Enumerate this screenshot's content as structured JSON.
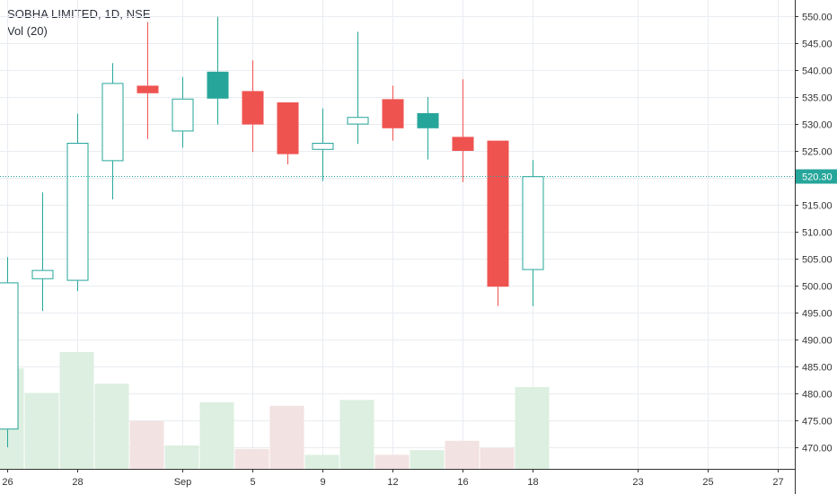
{
  "legend": {
    "title": "SOBHA LIMITED, 1D, NSE",
    "indicator": "Vol (20)"
  },
  "colors": {
    "up": "#26a69a",
    "down": "#ef5350",
    "vol_up": "#dcefe0",
    "vol_down": "#f3e2e2",
    "grid": "#e9ecf1",
    "axis": "#333333",
    "last_price_line": "#26a69a"
  },
  "chart_data": {
    "type": "candlestick",
    "symbol": "SOBHA LIMITED",
    "interval": "1D",
    "exchange": "NSE",
    "ylim": [
      466,
      553
    ],
    "yticks": [
      470,
      475,
      480,
      485,
      490,
      495,
      500,
      505,
      510,
      515,
      520,
      525,
      530,
      535,
      540,
      545,
      550
    ],
    "xticks": [
      {
        "label": "26",
        "index": 0
      },
      {
        "label": "28",
        "index": 2
      },
      {
        "label": "Sep",
        "index": 5
      },
      {
        "label": "5",
        "index": 7
      },
      {
        "label": "9",
        "index": 9
      },
      {
        "label": "12",
        "index": 11
      },
      {
        "label": "16",
        "index": 13
      },
      {
        "label": "18",
        "index": 15
      },
      {
        "label": "23",
        "index": 18
      },
      {
        "label": "25",
        "index": 20
      },
      {
        "label": "27",
        "index": 22
      }
    ],
    "last_price": 520.3,
    "last_price_label": "520.30",
    "candles": [
      {
        "open": 473.3,
        "high": 505.3,
        "low": 470.0,
        "close": 500.6,
        "volume": 0.86,
        "dir": "up"
      },
      {
        "open": 501.2,
        "high": 517.3,
        "low": 495.3,
        "close": 502.9,
        "volume": 0.65,
        "dir": "up"
      },
      {
        "open": 500.9,
        "high": 531.9,
        "low": 499.0,
        "close": 526.5,
        "volume": 1.0,
        "dir": "up"
      },
      {
        "open": 523.1,
        "high": 541.3,
        "low": 516.0,
        "close": 537.6,
        "volume": 0.73,
        "dir": "up"
      },
      {
        "open": 537.1,
        "high": 548.9,
        "low": 527.2,
        "close": 535.7,
        "volume": 0.41,
        "dir": "down"
      },
      {
        "open": 528.6,
        "high": 538.7,
        "low": 525.6,
        "close": 534.7,
        "volume": 0.2,
        "dir": "up"
      },
      {
        "open": 534.7,
        "high": 549.9,
        "low": 529.9,
        "close": 539.7,
        "volume": 0.57,
        "dir": "up-filled"
      },
      {
        "open": 536.1,
        "high": 541.8,
        "low": 524.8,
        "close": 529.9,
        "volume": 0.17,
        "dir": "down"
      },
      {
        "open": 534.0,
        "high": 534.0,
        "low": 522.5,
        "close": 524.4,
        "volume": 0.54,
        "dir": "down"
      },
      {
        "open": 525.2,
        "high": 532.9,
        "low": 519.4,
        "close": 526.5,
        "volume": 0.12,
        "dir": "up"
      },
      {
        "open": 529.9,
        "high": 547.1,
        "low": 526.3,
        "close": 531.3,
        "volume": 0.59,
        "dir": "up"
      },
      {
        "open": 534.6,
        "high": 537.1,
        "low": 526.9,
        "close": 529.2,
        "volume": 0.12,
        "dir": "down"
      },
      {
        "open": 529.2,
        "high": 535.0,
        "low": 523.4,
        "close": 532.0,
        "volume": 0.16,
        "dir": "up-filled"
      },
      {
        "open": 527.6,
        "high": 538.3,
        "low": 519.2,
        "close": 525.0,
        "volume": 0.24,
        "dir": "down"
      },
      {
        "open": 526.9,
        "high": 526.9,
        "low": 496.2,
        "close": 499.8,
        "volume": 0.18,
        "dir": "down"
      },
      {
        "open": 502.9,
        "high": 523.3,
        "low": 496.2,
        "close": 520.3,
        "volume": 0.7,
        "dir": "up"
      }
    ]
  }
}
